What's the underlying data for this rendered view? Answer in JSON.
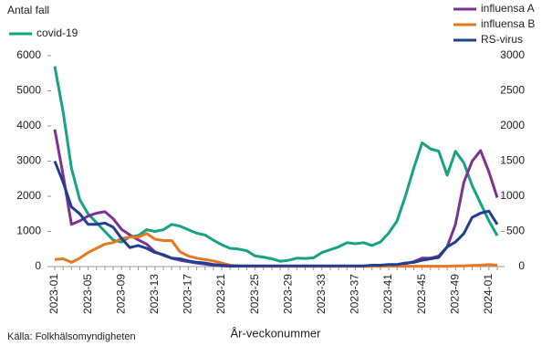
{
  "chart_data": {
    "type": "line",
    "ylabel": "Antal fall",
    "xlabel": "År-veckonummer",
    "source": "Källa: Folkhälsomyndigheten",
    "categories": [
      "2023-01",
      null,
      null,
      null,
      "2023-05",
      null,
      null,
      null,
      "2023-09",
      null,
      null,
      null,
      "2023-13",
      null,
      null,
      null,
      "2023-17",
      null,
      null,
      null,
      "2023-21",
      null,
      null,
      null,
      "2023-25",
      null,
      null,
      null,
      "2023-29",
      null,
      null,
      null,
      "2023-33",
      null,
      null,
      null,
      "2023-37",
      null,
      null,
      null,
      "2023-41",
      null,
      null,
      null,
      "2023-45",
      null,
      null,
      null,
      "2023-49",
      null,
      null,
      null,
      "2024-01",
      null
    ],
    "ylim": [
      0,
      6000
    ],
    "yticks": [
      0,
      1000,
      2000,
      3000,
      4000,
      5000,
      6000
    ],
    "y2lim": [
      0,
      3000
    ],
    "y2ticks": [
      0,
      500,
      1000,
      1500,
      2000,
      2500,
      3000
    ],
    "series": [
      {
        "name": "covid-19",
        "color": "#17a382",
        "values": [
          5700,
          4400,
          2800,
          1900,
          1500,
          1250,
          1000,
          750,
          700,
          850,
          880,
          1050,
          1000,
          1050,
          1200,
          1150,
          1050,
          950,
          900,
          750,
          620,
          520,
          500,
          450,
          300,
          270,
          220,
          150,
          180,
          240,
          230,
          250,
          400,
          480,
          560,
          680,
          650,
          680,
          600,
          700,
          950,
          1300,
          2000,
          2800,
          3520,
          3350,
          3280,
          2600,
          3280,
          2950,
          2300,
          1800,
          1300,
          880
        ]
      },
      {
        "name": "influensa A",
        "color": "#7b3294",
        "axis": "y2",
        "values": [
          1950,
          1300,
          600,
          650,
          720,
          760,
          780,
          680,
          530,
          450,
          380,
          320,
          210,
          160,
          120,
          90,
          70,
          50,
          35,
          20,
          10,
          5,
          5,
          5,
          5,
          5,
          5,
          5,
          5,
          5,
          5,
          5,
          5,
          5,
          5,
          5,
          5,
          5,
          5,
          5,
          10,
          20,
          40,
          70,
          120,
          120,
          150,
          280,
          600,
          1200,
          1500,
          1650,
          1350,
          980
        ]
      },
      {
        "name": "influensa B",
        "color": "#e87722",
        "axis": "y2",
        "values": [
          100,
          110,
          60,
          120,
          200,
          260,
          320,
          340,
          400,
          420,
          420,
          470,
          390,
          370,
          370,
          210,
          150,
          120,
          100,
          80,
          50,
          20,
          10,
          5,
          5,
          5,
          5,
          5,
          5,
          5,
          5,
          5,
          5,
          5,
          5,
          5,
          5,
          5,
          5,
          5,
          5,
          5,
          5,
          5,
          5,
          5,
          5,
          5,
          10,
          10,
          15,
          20,
          30,
          20
        ]
      },
      {
        "name": "RS-virus",
        "color": "#213f8f",
        "axis": "y2",
        "values": [
          1500,
          1200,
          850,
          750,
          600,
          600,
          620,
          560,
          400,
          270,
          300,
          260,
          200,
          170,
          120,
          110,
          80,
          60,
          50,
          30,
          20,
          10,
          10,
          10,
          10,
          10,
          10,
          10,
          10,
          10,
          10,
          10,
          10,
          10,
          10,
          10,
          10,
          10,
          20,
          20,
          30,
          30,
          50,
          60,
          90,
          110,
          130,
          280,
          350,
          470,
          700,
          760,
          790,
          600
        ]
      }
    ]
  }
}
